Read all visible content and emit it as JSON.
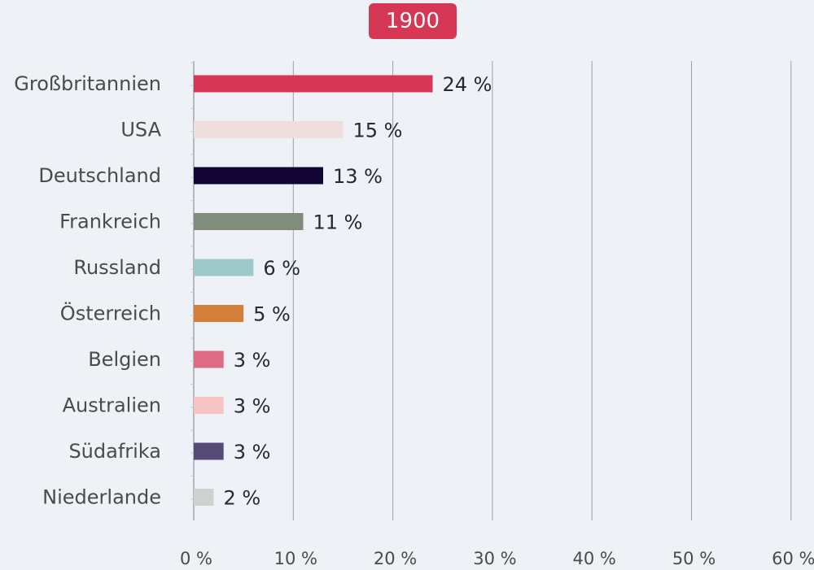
{
  "header": {
    "year": "1900"
  },
  "chart_data": {
    "type": "bar",
    "orientation": "horizontal",
    "categories": [
      "Großbritannien",
      "USA",
      "Deutschland",
      "Frankreich",
      "Russland",
      "Österreich",
      "Belgien",
      "Australien",
      "Südafrika",
      "Niederlande"
    ],
    "values": [
      24,
      15,
      13,
      11,
      6,
      5,
      3,
      3,
      3,
      2
    ],
    "value_labels": [
      "24 %",
      "15 %",
      "13 %",
      "11 %",
      "6 %",
      "5 %",
      "3 %",
      "3 %",
      "3 %",
      "2 %"
    ],
    "colors": [
      "#d63755",
      "#efdedb",
      "#120434",
      "#808d7c",
      "#9ec9cb",
      "#d37f3a",
      "#de6a85",
      "#f5c5c4",
      "#564b78",
      "#ccd3ce"
    ],
    "xlim": [
      0,
      60
    ],
    "ticks": [
      0,
      10,
      20,
      30,
      40,
      50,
      60
    ],
    "tick_labels": [
      "0 %",
      "10 %",
      "20 %",
      "30 %",
      "40 %",
      "50 %",
      "60 %"
    ],
    "grid": true,
    "grid_color": "#9aa0a6",
    "label_color": "#4a4a4a",
    "value_color": "#222a33"
  }
}
